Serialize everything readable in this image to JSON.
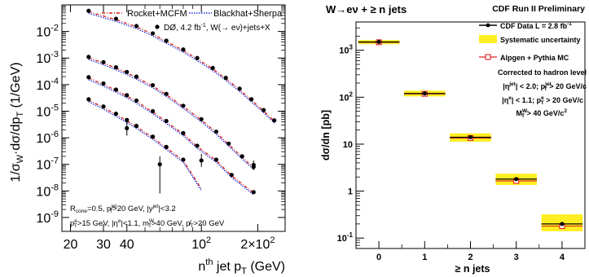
{
  "chart_data": [
    {
      "type": "scatter",
      "ylabel_main": "1/σ",
      "ylabel_sub": "W",
      "ylabel_rest": "·dσ/dp",
      "ylabel_sub2": "T",
      "ylabel_unit": " (1/GeV)",
      "xlabel_pre": "n",
      "xlabel_sup": "th",
      "xlabel_post": " jet p",
      "xlabel_sub": "T",
      "xlabel_unit": " (GeV)",
      "xscale": "log",
      "yscale": "log",
      "xlim": [
        18,
        280
      ],
      "ylim": [
        3e-10,
        0.1
      ],
      "x_ticks": [
        {
          "v": 20,
          "label": "20"
        },
        {
          "v": 30,
          "label": "30"
        },
        {
          "v": 40,
          "label": "40"
        },
        {
          "v": 100,
          "label": "10",
          "sup": "2"
        },
        {
          "v": 200,
          "label": "2×10",
          "sup": "2"
        }
      ],
      "y_ticks": [
        {
          "v": 1e-09,
          "exp": "-9"
        },
        {
          "v": 1e-08,
          "exp": "-8"
        },
        {
          "v": 1e-07,
          "exp": "-7"
        },
        {
          "v": 1e-06,
          "exp": "-6"
        },
        {
          "v": 1e-05,
          "exp": "-5"
        },
        {
          "v": 0.0001,
          "exp": "-4"
        },
        {
          "v": 0.001,
          "exp": "-3"
        },
        {
          "v": 0.01,
          "exp": "-2"
        }
      ],
      "legend": {
        "rocket": "Rocket+MCFM",
        "blackhat": "Blackhat+Sherpa",
        "data_a": "DØ, 4.2 fb",
        "data_sup": "-1",
        "data_b": ", W(→ eν)+jets+X"
      },
      "annotations": {
        "line1": "R=0.5, p>20 GeV, |y|<3.2",
        "line2": "p>15 GeV, |η|<1.1, m>40 GeV, p̸>20 GeV"
      },
      "series": [
        {
          "x": [
            25,
            35,
            45,
            55,
            65,
            80,
            95,
            115,
            135,
            160,
            185,
            215,
            245
          ],
          "y": [
            0.06,
            0.03,
            0.016,
            0.0085,
            0.0045,
            0.0021,
            0.001,
            0.00042,
            0.00018,
            7e-05,
            2.8e-05,
            1.1e-05,
            4.5e-06
          ]
        },
        {
          "x": [
            25,
            30,
            35,
            40,
            45,
            55,
            65,
            80,
            100,
            120,
            140,
            165,
            190
          ],
          "y": [
            0.0011,
            0.0007,
            0.00045,
            0.0003,
            0.0002,
            9.5e-05,
            4.5e-05,
            1.6e-05,
            5e-06,
            1.7e-06,
            6e-07,
            2e-07,
            8e-08
          ]
        },
        {
          "x": [
            25,
            30,
            35,
            40,
            45,
            55,
            65,
            80,
            95,
            120,
            145,
            190
          ],
          "y": [
            0.00019,
            0.00011,
            6.5e-05,
            4e-05,
            2.5e-05,
            1e-05,
            4.3e-06,
            1.5e-06,
            5e-07,
            1.5e-07,
            4e-08,
            9e-09
          ]
        },
        {
          "x": [
            25,
            30,
            35,
            40,
            45,
            55,
            65,
            80,
            100
          ],
          "y": [
            2.8e-05,
            1.5e-05,
            8e-06,
            4.7e-06,
            2.8e-06,
            1.1e-06,
            4.5e-07,
            1.5e-07,
            1.3e-08
          ]
        }
      ],
      "error_bars": [
        {
          "x": 40,
          "y": 2.3e-06,
          "lo": 1.2e-06,
          "hi": 4e-06
        },
        {
          "x": 60,
          "y": 1e-07,
          "lo": 8e-09,
          "hi": 2e-07
        },
        {
          "x": 100,
          "y": 1.4e-07,
          "lo": 8e-08,
          "hi": 2.5e-07
        },
        {
          "x": 190,
          "y": 9.5e-08,
          "lo": 6e-08,
          "hi": 1.4e-07
        }
      ],
      "colors": {
        "rocket": "#d62020",
        "blackhat": "#1a2ee0",
        "data": "#000000"
      }
    },
    {
      "type": "scatter",
      "title": "W→eν + ≥ n jets",
      "title_right": "CDF Run II Preliminary",
      "xlabel": "≥ n jets",
      "ylabel": "dσ/dn [pb]",
      "yscale": "log",
      "xlim": [
        -0.5,
        4.5
      ],
      "ylim": [
        0.06,
        4000
      ],
      "x_ticks": [
        0,
        1,
        2,
        3,
        4
      ],
      "y_ticks": [
        {
          "v": 0.1,
          "base": "10",
          "exp": "-1"
        },
        {
          "v": 1,
          "base": "1",
          "exp": ""
        },
        {
          "v": 10,
          "base": "10",
          "exp": ""
        },
        {
          "v": 100,
          "base": "10",
          "exp": "2"
        },
        {
          "v": 1000,
          "base": "10",
          "exp": "3"
        }
      ],
      "points": [
        {
          "n": 0,
          "data": 1500,
          "mc": 1480,
          "band_lo": 1350,
          "band_hi": 1650
        },
        {
          "n": 1,
          "data": 120,
          "mc": 118,
          "band_lo": 104,
          "band_hi": 138
        },
        {
          "n": 2,
          "data": 14,
          "mc": 13.5,
          "band_lo": 11.3,
          "band_hi": 17.0
        },
        {
          "n": 3,
          "data": 1.8,
          "mc": 1.65,
          "band_lo": 1.35,
          "band_hi": 2.35
        },
        {
          "n": 4,
          "data": 0.2,
          "mc": 0.18,
          "band_lo": 0.14,
          "band_hi": 0.32
        }
      ],
      "legend": {
        "data": "CDF Data  L = 2.8 fb",
        "data_sup": "-1",
        "syst": "Systematic uncertainty",
        "mc": "Alpgen + Pythia MC"
      },
      "cuts": {
        "head": "Corrected to hadron level",
        "l1": "|η| < 2.0;  p > 20 GeV/c",
        "l2": "|η| < 1.1;  p > 20 GeV/c",
        "l3": "M > 40 GeV/c"
      },
      "colors": {
        "band": "#ffee22",
        "mc": "#e02020",
        "data": "#000000"
      }
    }
  ]
}
